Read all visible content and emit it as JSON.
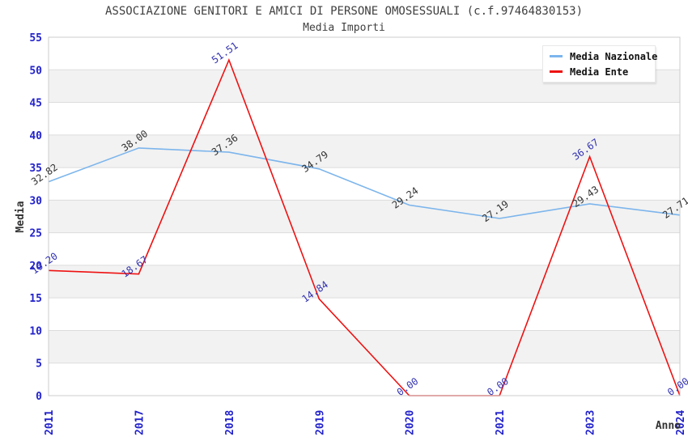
{
  "chart_data": {
    "type": "line",
    "title": "ASSOCIAZIONE GENITORI E AMICI DI PERSONE OMOSESSUALI (c.f.97464830153)",
    "subtitle": "Media Importi",
    "xlabel": "Anno",
    "ylabel": "Media",
    "categories": [
      "2011",
      "2017",
      "2018",
      "2019",
      "2020",
      "2021",
      "2023",
      "2024"
    ],
    "series": [
      {
        "name": "Media Nazionale",
        "color": "#7cb5ec",
        "label_color": "#333333",
        "values": [
          32.82,
          38.0,
          37.36,
          34.79,
          29.24,
          27.19,
          29.43,
          27.71
        ]
      },
      {
        "name": "Media Ente",
        "color": "#ee1111",
        "label_color": "#3333b3",
        "values": [
          19.2,
          18.67,
          51.51,
          14.84,
          0.0,
          0.0,
          36.67,
          0.0
        ]
      }
    ],
    "ylim": [
      0,
      55
    ],
    "ytick_step": 5,
    "yticks": [
      0,
      5,
      10,
      15,
      20,
      25,
      30,
      35,
      40,
      45,
      50,
      55
    ],
    "grid": true,
    "band_fill": "#f2f2f2",
    "gridline_color": "#dcdcdc",
    "border_color": "#cccccc",
    "tick_label_color": "#2222cc",
    "legend_position": "top-right"
  }
}
